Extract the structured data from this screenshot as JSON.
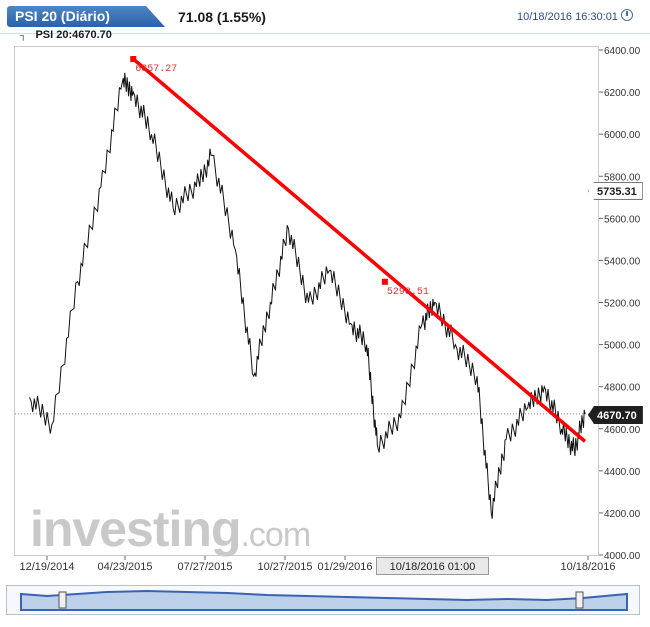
{
  "header": {
    "symbol_tab": "PSI 20 (Diário)",
    "change": "71.08 (1.55%)",
    "datetime": "10/18/2016 16:30:01",
    "clock_icon": "clock-icon"
  },
  "legend": {
    "series_label": "PSI 20:4670.70"
  },
  "watermark": {
    "brand": "investing",
    "suffix": ".com"
  },
  "chart_data": {
    "type": "line",
    "title": "",
    "xlabel": "",
    "ylabel": "",
    "x_tick_labels": [
      "12/19/2014",
      "04/23/2015",
      "07/27/2015",
      "10/27/2015",
      "01/29/2016",
      "10/18/2016"
    ],
    "y_tick_labels": [
      "6400.00",
      "6200.00",
      "6000.00",
      "5800.00",
      "5600.00",
      "5400.00",
      "5200.00",
      "5000.00",
      "4800.00",
      "4600.00",
      "4400.00",
      "4200.00",
      "4000.00"
    ],
    "ylim": [
      4000,
      6400
    ],
    "grid": false,
    "series": [
      {
        "dates": [
          "2014-12-19",
          "2015-01-15",
          "2015-02-15",
          "2015-03-15",
          "2015-04-10",
          "2015-04-23",
          "2015-05-15",
          "2015-06-10",
          "2015-07-08",
          "2015-07-27",
          "2015-08-24",
          "2015-09-15",
          "2015-10-05",
          "2015-10-27",
          "2015-11-20",
          "2015-12-15",
          "2016-01-10",
          "2016-01-29",
          "2016-02-11",
          "2016-03-10",
          "2016-04-05",
          "2016-04-20",
          "2016-05-15",
          "2016-06-10",
          "2016-06-27",
          "2016-07-15",
          "2016-08-10",
          "2016-08-30",
          "2016-09-20",
          "2016-10-05",
          "2016-10-18"
        ],
        "values": [
          4750,
          4620,
          5300,
          5750,
          6250,
          6200,
          6000,
          5650,
          5750,
          5900,
          5450,
          4850,
          5200,
          5550,
          5200,
          5350,
          5100,
          5000,
          4520,
          4650,
          5100,
          5200,
          5000,
          4850,
          4200,
          4550,
          4700,
          4800,
          4600,
          4500,
          4670.7
        ]
      }
    ],
    "trendline": {
      "color": "#ff0000",
      "start": {
        "date": "2015-04-23",
        "value": 6357.27,
        "label": "6357.27"
      },
      "mid": {
        "date": "2016-02-20",
        "value": 5298.51,
        "label": "5298.51"
      },
      "end": {
        "date": "2016-10-18",
        "value": 4540
      }
    },
    "hover_price": "5735.31",
    "current_price": "4670.70",
    "cursor_date": "10/18/2016 01:00"
  }
}
